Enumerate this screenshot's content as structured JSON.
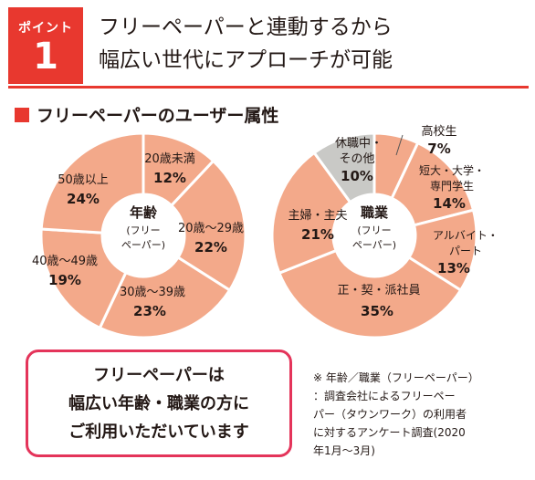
{
  "point": {
    "label": "ポイント",
    "number": "1"
  },
  "headline": {
    "line1": "フリーペーパーと連動するから",
    "line2": "幅広い世代にアプローチが可能"
  },
  "section_title": "フリーペーパーのユーザー属性",
  "colors": {
    "accent": "#e8382f",
    "callout_border": "#e4345a",
    "segment": "#f3a98a",
    "segment_other": "#c9c9c6"
  },
  "chart_data": [
    {
      "type": "pie",
      "center_label": [
        "年齢",
        "(フリー",
        "ペーパー)"
      ],
      "slices": [
        {
          "label": "20歳未満",
          "value": 12,
          "value_label": "12%"
        },
        {
          "label": "20歳～29歳",
          "value": 22,
          "value_label": "22%"
        },
        {
          "label": "30歳～39歳",
          "value": 23,
          "value_label": "23%"
        },
        {
          "label": "40歳～49歳",
          "value": 19,
          "value_label": "19%"
        },
        {
          "label": "50歳以上",
          "value": 24,
          "value_label": "24%"
        }
      ]
    },
    {
      "type": "pie",
      "center_label": [
        "職業",
        "(フリー",
        "ペーパー)"
      ],
      "slices": [
        {
          "label": "高校生",
          "value": 7,
          "value_label": "7%"
        },
        {
          "label": "短大・大学・専門学生",
          "value": 14,
          "value_label": "14%"
        },
        {
          "label": "アルバイト・パート",
          "value": 13,
          "value_label": "13%"
        },
        {
          "label": "正・契・派社員",
          "value": 35,
          "value_label": "35%"
        },
        {
          "label": "主婦・主夫",
          "value": 21,
          "value_label": "21%"
        },
        {
          "label": "休職中・その他",
          "value": 10,
          "value_label": "10%"
        }
      ]
    }
  ],
  "callout": {
    "line1": "フリーペーパーは",
    "line2": "幅広い年齢・職業の方に",
    "line3": "ご利用いただいています"
  },
  "note": {
    "line1": "※ 年齢／職業（フリーペーパー）",
    "line2": "：調査会社によるフリーペー",
    "line3": "パー（タウンワーク）の利用者",
    "line4": "に対するアンケート調査(2020",
    "line5": "年1月～3月)"
  }
}
